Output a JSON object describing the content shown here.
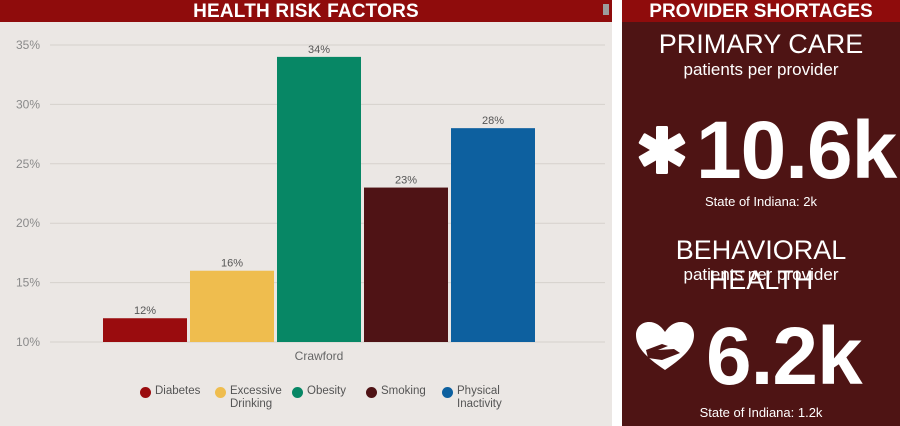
{
  "left": {
    "title": "HEALTH RISK FACTORS"
  },
  "right": {
    "title": "PROVIDER SHORTAGES",
    "primary": {
      "title": "PRIMARY CARE",
      "subtitle": "patients per provider",
      "value": "10.6k",
      "icon": "star-of-life-icon",
      "state_note": "State of Indiana: 2k"
    },
    "behavioral": {
      "title": "BEHAVIORAL HEALTH",
      "subtitle": "patients per provider",
      "value": "6.2k",
      "icon": "hand-heart-icon",
      "state_note": "State of Indiana: 1.2k"
    }
  },
  "chart_data": {
    "type": "bar",
    "categories": [
      "Crawford"
    ],
    "series": [
      {
        "name": "Diabetes",
        "values": [
          12
        ],
        "label": "12%",
        "color": "#9a0c0e"
      },
      {
        "name": "Excessive Drinking",
        "values": [
          16
        ],
        "label": "16%",
        "color": "#efbd4e"
      },
      {
        "name": "Obesity",
        "values": [
          34
        ],
        "label": "34%",
        "color": "#078765"
      },
      {
        "name": "Smoking",
        "values": [
          23
        ],
        "label": "23%",
        "color": "#4f1315"
      },
      {
        "name": "Physical Inactivity",
        "values": [
          28
        ],
        "label": "28%",
        "color": "#0d609f"
      }
    ],
    "legend_labels": [
      "Diabetes",
      "Excessive Drinking",
      "Obesity",
      "Smoking",
      "Physical Inactivity"
    ],
    "ylim": [
      10,
      35
    ],
    "yticks": [
      10,
      15,
      20,
      25,
      30,
      35
    ],
    "ytick_labels": [
      "10%",
      "15%",
      "20%",
      "25%",
      "30%",
      "35%"
    ],
    "grid": true,
    "legend_position": "bottom"
  }
}
